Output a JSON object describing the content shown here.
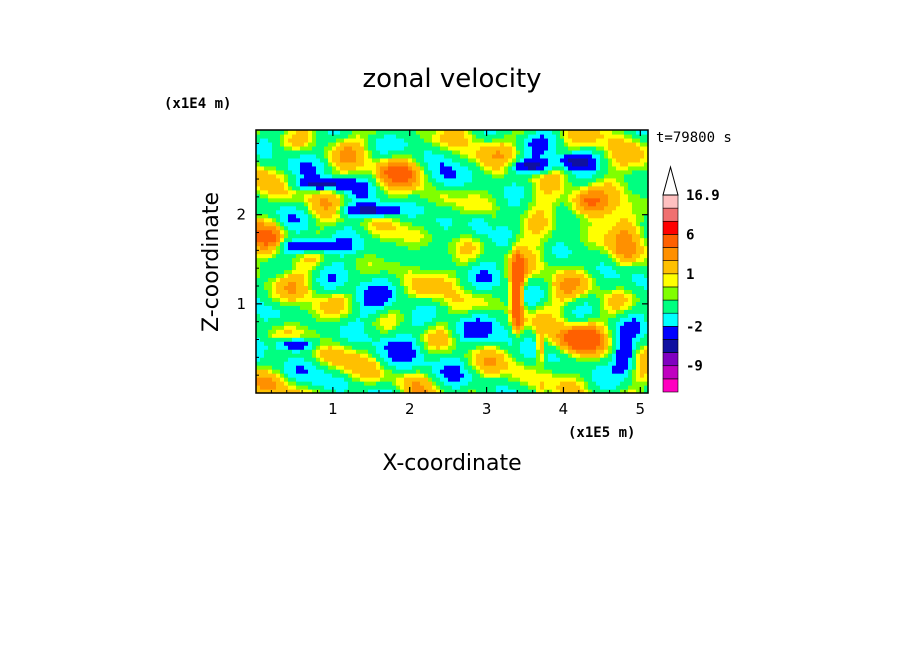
{
  "chart_data": {
    "type": "heatmap",
    "title": "zonal velocity",
    "xlabel": "X-coordinate",
    "ylabel": "Z-coordinate",
    "x_unit": "(x1E5 m)",
    "y_unit": "(x1E4 m)",
    "time_label": "t=79800 s",
    "xlim": [
      0.0,
      5.1
    ],
    "ylim": [
      0.0,
      2.95
    ],
    "x_ticks": [
      "1",
      "2",
      "3",
      "4",
      "5"
    ],
    "y_ticks": [
      "1",
      "2"
    ],
    "colorbar": {
      "labels": [
        "16.9",
        "6",
        "1",
        "-2",
        "-9"
      ],
      "label_values": [
        16.9,
        6,
        1,
        -2,
        -9
      ],
      "levels": [
        {
          "min": -16,
          "max": -12,
          "color": "#ff00c0"
        },
        {
          "min": -12,
          "max": -9,
          "color": "#c000c0"
        },
        {
          "min": -9,
          "max": -6,
          "color": "#8000c0"
        },
        {
          "min": -6,
          "max": -4,
          "color": "#1010a0"
        },
        {
          "min": -4,
          "max": -2,
          "color": "#0000ff"
        },
        {
          "min": -2,
          "max": -1,
          "color": "#00ffff"
        },
        {
          "min": -1,
          "max": 0,
          "color": "#00ff80"
        },
        {
          "min": 0,
          "max": 0.5,
          "color": "#80ff00"
        },
        {
          "min": 0.5,
          "max": 1,
          "color": "#ffff00"
        },
        {
          "min": 1,
          "max": 2,
          "color": "#ffc000"
        },
        {
          "min": 2,
          "max": 3,
          "color": "#ff9000"
        },
        {
          "min": 3,
          "max": 6,
          "color": "#ff6000"
        },
        {
          "min": 6,
          "max": 9,
          "color": "#ff0000"
        },
        {
          "min": 9,
          "max": 12,
          "color": "#f07070"
        },
        {
          "min": 12,
          "max": 16.9,
          "color": "#ffc0c0"
        }
      ],
      "max_arrow_color": "#ffffff"
    },
    "grid": false,
    "legend": "colorbar-right"
  }
}
